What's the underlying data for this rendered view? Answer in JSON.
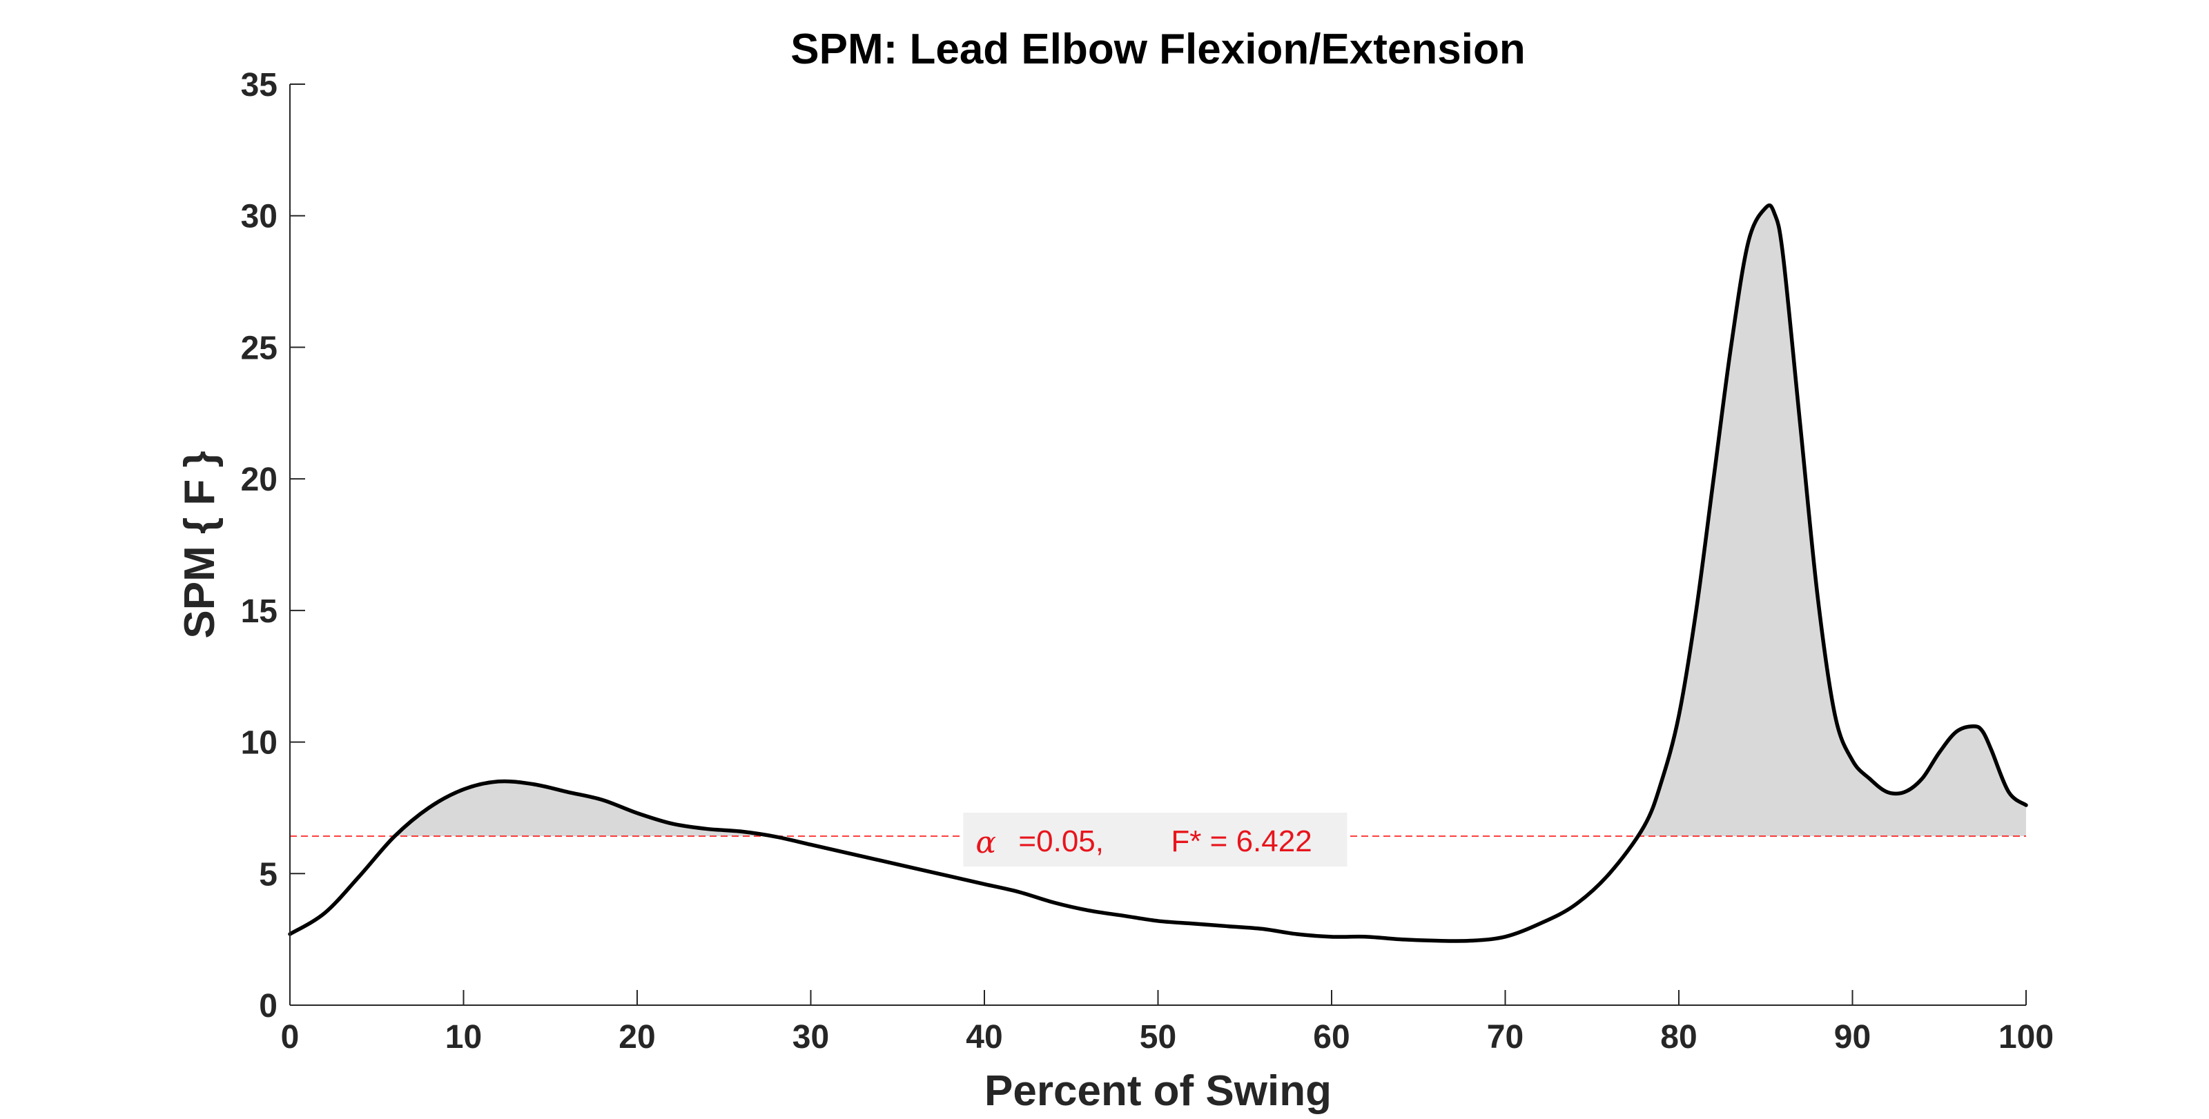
{
  "colors": {
    "curve": "#000000",
    "fill": "#d9d9d9",
    "threshold": "#ff0000",
    "annotation_text": "#e8141c",
    "annotation_bg": "#f0f0f0",
    "axis": "#262626"
  },
  "chart_data": {
    "type": "line",
    "title": "SPM: Lead Elbow Flexion/Extension",
    "xlabel": "Percent of Swing",
    "ylabel": "SPM { F }",
    "xlim": [
      0,
      100
    ],
    "ylim": [
      0,
      35
    ],
    "xticks": [
      0,
      10,
      20,
      30,
      40,
      50,
      60,
      70,
      80,
      90,
      100
    ],
    "yticks": [
      0,
      5,
      10,
      15,
      20,
      25,
      30,
      35
    ],
    "xtick_labels": [
      "0",
      "10",
      "20",
      "30",
      "40",
      "50",
      "60",
      "70",
      "80",
      "90",
      "100"
    ],
    "ytick_labels": [
      "0",
      "5",
      "10",
      "15",
      "20",
      "25",
      "30",
      "35"
    ],
    "threshold": {
      "value": 6.422,
      "alpha_symbol": "α",
      "alpha_text": "=0.05,",
      "fstar_text": "F* = 6.422"
    },
    "series": [
      {
        "name": "SPM{F}",
        "x": [
          0,
          2,
          4,
          6,
          8,
          10,
          12,
          14,
          16,
          18,
          20,
          22,
          24,
          26,
          28,
          30,
          32,
          34,
          36,
          38,
          40,
          42,
          44,
          46,
          48,
          50,
          52,
          54,
          56,
          58,
          60,
          62,
          64,
          66,
          68,
          70,
          72,
          74,
          76,
          78,
          79,
          80,
          81,
          82,
          83,
          84,
          85,
          85.5,
          86,
          87,
          88,
          89,
          90,
          91,
          92,
          93,
          94,
          95,
          96,
          97,
          97.5,
          98,
          99,
          100
        ],
        "y": [
          2.7,
          3.5,
          4.9,
          6.4,
          7.5,
          8.2,
          8.5,
          8.4,
          8.1,
          7.8,
          7.3,
          6.9,
          6.7,
          6.6,
          6.4,
          6.1,
          5.8,
          5.5,
          5.2,
          4.9,
          4.6,
          4.3,
          3.9,
          3.6,
          3.4,
          3.2,
          3.1,
          3.0,
          2.9,
          2.7,
          2.6,
          2.6,
          2.5,
          2.45,
          2.45,
          2.6,
          3.1,
          3.8,
          5.0,
          6.8,
          8.5,
          11.0,
          15.0,
          20.0,
          25.0,
          29.0,
          30.3,
          30.1,
          28.5,
          22.0,
          15.5,
          11.0,
          9.3,
          8.6,
          8.1,
          8.1,
          8.6,
          9.6,
          10.4,
          10.6,
          10.4,
          9.7,
          8.1,
          7.6
        ]
      }
    ]
  }
}
